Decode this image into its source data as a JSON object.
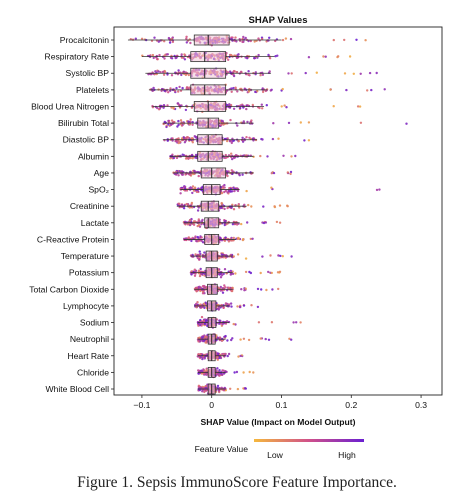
{
  "chart_data": {
    "type": "scatter",
    "subtype": "beeswarm-with-boxplots",
    "title": "SHAP Values",
    "xlabel": "SHAP Value (Impact on Model Output)",
    "ylabel": "",
    "xlim": [
      -0.14,
      0.33
    ],
    "xticks": [
      -0.1,
      0,
      0.1,
      0.2,
      0.3
    ],
    "xtick_labels": [
      "−0.1",
      "0",
      "0.1",
      "0.2",
      "0.3"
    ],
    "grid": false,
    "colorbar": {
      "label": "Feature Value",
      "low_label": "Low",
      "high_label": "High",
      "low_color": "#f5b83d",
      "mid_color": "#d0508a",
      "high_color": "#6a1fd1",
      "placement": "bottom-center"
    },
    "features": [
      {
        "name": "Procalcitonin",
        "whisker_low": -0.12,
        "q1": -0.025,
        "median": -0.005,
        "q3": 0.025,
        "whisker_high": 0.1,
        "min": -0.125,
        "max": 0.27
      },
      {
        "name": "Respiratory Rate",
        "whisker_low": -0.1,
        "q1": -0.03,
        "median": -0.01,
        "q3": 0.02,
        "whisker_high": 0.09,
        "min": -0.105,
        "max": 0.22
      },
      {
        "name": "Systolic BP",
        "whisker_low": -0.095,
        "q1": -0.03,
        "median": -0.01,
        "q3": 0.02,
        "whisker_high": 0.085,
        "min": -0.1,
        "max": 0.25
      },
      {
        "name": "Platelets",
        "whisker_low": -0.09,
        "q1": -0.03,
        "median": -0.01,
        "q3": 0.02,
        "whisker_high": 0.08,
        "min": -0.095,
        "max": 0.26
      },
      {
        "name": "Blood Urea Nitrogen",
        "whisker_low": -0.085,
        "q1": -0.025,
        "median": -0.005,
        "q3": 0.02,
        "whisker_high": 0.075,
        "min": -0.09,
        "max": 0.22
      },
      {
        "name": "Bilirubin Total",
        "whisker_low": -0.07,
        "q1": -0.02,
        "median": -0.005,
        "q3": 0.01,
        "whisker_high": 0.06,
        "min": -0.075,
        "max": 0.3
      },
      {
        "name": "Diastolic BP",
        "whisker_low": -0.07,
        "q1": -0.02,
        "median": -0.005,
        "q3": 0.015,
        "whisker_high": 0.065,
        "min": -0.075,
        "max": 0.19
      },
      {
        "name": "Albumin",
        "whisker_low": -0.06,
        "q1": -0.02,
        "median": -0.005,
        "q3": 0.015,
        "whisker_high": 0.06,
        "min": -0.08,
        "max": 0.12
      },
      {
        "name": "Age",
        "whisker_low": -0.055,
        "q1": -0.015,
        "median": 0.0,
        "q3": 0.02,
        "whisker_high": 0.06,
        "min": -0.06,
        "max": 0.12
      },
      {
        "name": "SpO₂",
        "whisker_low": -0.045,
        "q1": -0.012,
        "median": 0.0,
        "q3": 0.012,
        "whisker_high": 0.04,
        "min": -0.045,
        "max": 0.26
      },
      {
        "name": "Creatinine",
        "whisker_low": -0.05,
        "q1": -0.015,
        "median": -0.005,
        "q3": 0.01,
        "whisker_high": 0.05,
        "min": -0.09,
        "max": 0.12
      },
      {
        "name": "Lactate",
        "whisker_low": -0.04,
        "q1": -0.01,
        "median": -0.005,
        "q3": 0.01,
        "whisker_high": 0.04,
        "min": -0.045,
        "max": 0.1
      },
      {
        "name": "C-Reactive Protein",
        "whisker_low": -0.04,
        "q1": -0.01,
        "median": 0.0,
        "q3": 0.01,
        "whisker_high": 0.035,
        "min": -0.06,
        "max": 0.06
      },
      {
        "name": "Temperature",
        "whisker_low": -0.03,
        "q1": -0.008,
        "median": 0.0,
        "q3": 0.008,
        "whisker_high": 0.03,
        "min": -0.05,
        "max": 0.12
      },
      {
        "name": "Potassium",
        "whisker_low": -0.03,
        "q1": -0.008,
        "median": 0.0,
        "q3": 0.008,
        "whisker_high": 0.03,
        "min": -0.04,
        "max": 0.1
      },
      {
        "name": "Total Carbon Dioxide",
        "whisker_low": -0.025,
        "q1": -0.006,
        "median": 0.0,
        "q3": 0.008,
        "whisker_high": 0.03,
        "min": -0.035,
        "max": 0.1
      },
      {
        "name": "Lymphocyte",
        "whisker_low": -0.025,
        "q1": -0.006,
        "median": 0.0,
        "q3": 0.006,
        "whisker_high": 0.025,
        "min": -0.035,
        "max": 0.075
      },
      {
        "name": "Sodium",
        "whisker_low": -0.02,
        "q1": -0.005,
        "median": 0.0,
        "q3": 0.006,
        "whisker_high": 0.025,
        "min": -0.03,
        "max": 0.16
      },
      {
        "name": "Neutrophil",
        "whisker_low": -0.02,
        "q1": -0.005,
        "median": 0.0,
        "q3": 0.005,
        "whisker_high": 0.02,
        "min": -0.03,
        "max": 0.12
      },
      {
        "name": "Heart Rate",
        "whisker_low": -0.02,
        "q1": -0.005,
        "median": 0.0,
        "q3": 0.005,
        "whisker_high": 0.02,
        "min": -0.03,
        "max": 0.05
      },
      {
        "name": "Chloride",
        "whisker_low": -0.02,
        "q1": -0.005,
        "median": 0.0,
        "q3": 0.005,
        "whisker_high": 0.02,
        "min": -0.03,
        "max": 0.06
      },
      {
        "name": "White Blood Cell",
        "whisker_low": -0.02,
        "q1": -0.005,
        "median": 0.0,
        "q3": 0.005,
        "whisker_high": 0.02,
        "min": -0.025,
        "max": 0.05
      }
    ]
  },
  "caption": {
    "text": "Figure 1.  Sepsis ImmunoScore Feature Importance."
  }
}
